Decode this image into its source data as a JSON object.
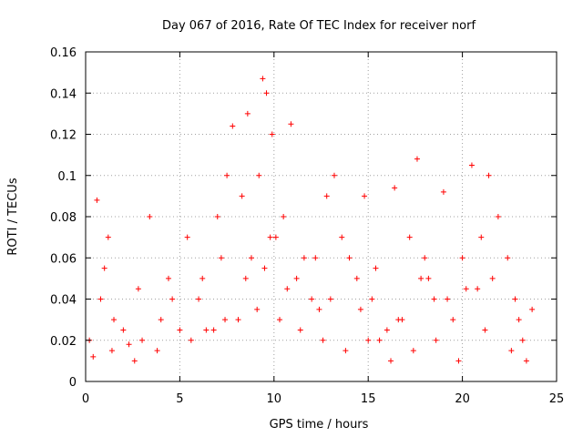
{
  "chart_data": {
    "type": "scatter",
    "title": "Day 067 of 2016, Rate Of TEC Index for receiver norf",
    "xlabel": "GPS time / hours",
    "ylabel": "ROTI / TECUs",
    "xlim": [
      0,
      25
    ],
    "ylim": [
      0,
      0.16
    ],
    "xticks": [
      "0",
      "5",
      "10",
      "15",
      "20",
      "25"
    ],
    "yticks": [
      "0",
      "0.02",
      "0.04",
      "0.06",
      "0.08",
      "0.1",
      "0.12",
      "0.14",
      "0.16"
    ],
    "grid": true,
    "marker": "+",
    "color": "#ff0000",
    "series": [
      {
        "x": [
          0.2,
          0.6,
          1.0,
          1.2,
          1.5,
          2.0,
          2.3,
          3.0,
          3.4,
          4.0,
          4.6,
          5.0,
          5.4,
          6.0,
          6.4,
          7.0,
          7.4,
          7.5,
          7.8,
          8.3,
          8.6,
          8.8,
          9.2,
          9.4,
          9.6,
          9.9,
          10.1,
          10.5,
          10.9,
          11.2,
          11.6,
          12.0,
          12.4,
          12.8,
          13.2,
          13.6,
          14.0,
          14.4,
          14.8,
          15.2,
          15.6,
          16.0,
          16.4,
          16.8,
          17.2,
          17.6,
          18.0,
          18.5,
          19.0,
          19.5,
          20.0,
          20.5,
          21.0,
          21.4,
          21.9,
          22.4,
          22.8,
          23.2,
          23.7,
          0.4,
          1.4,
          2.6,
          3.8,
          5.6,
          6.8,
          8.1,
          9.1,
          10.3,
          11.4,
          12.6,
          13.8,
          15.0,
          16.2,
          17.4,
          18.6,
          19.8,
          21.2,
          22.6,
          23.4,
          0.8,
          4.4,
          7.2,
          8.5,
          9.5,
          10.7,
          13.0,
          14.6,
          16.6,
          17.8,
          19.2,
          20.8,
          21.6,
          23.0,
          2.8,
          6.2,
          9.8,
          12.2,
          15.4,
          18.2,
          20.2
        ],
        "y": [
          0.02,
          0.088,
          0.055,
          0.07,
          0.03,
          0.025,
          0.018,
          0.02,
          0.08,
          0.03,
          0.04,
          0.025,
          0.07,
          0.04,
          0.025,
          0.08,
          0.03,
          0.1,
          0.124,
          0.09,
          0.13,
          0.06,
          0.1,
          0.147,
          0.14,
          0.12,
          0.07,
          0.08,
          0.125,
          0.05,
          0.06,
          0.04,
          0.035,
          0.09,
          0.1,
          0.07,
          0.06,
          0.05,
          0.09,
          0.04,
          0.02,
          0.025,
          0.094,
          0.03,
          0.07,
          0.108,
          0.06,
          0.04,
          0.092,
          0.03,
          0.06,
          0.105,
          0.07,
          0.1,
          0.08,
          0.06,
          0.04,
          0.02,
          0.035,
          0.012,
          0.015,
          0.01,
          0.015,
          0.02,
          0.025,
          0.03,
          0.035,
          0.03,
          0.025,
          0.02,
          0.015,
          0.02,
          0.01,
          0.015,
          0.02,
          0.01,
          0.025,
          0.015,
          0.01,
          0.04,
          0.05,
          0.06,
          0.05,
          0.055,
          0.045,
          0.04,
          0.035,
          0.03,
          0.05,
          0.04,
          0.045,
          0.05,
          0.03,
          0.045,
          0.05,
          0.07,
          0.06,
          0.055,
          0.05,
          0.045
        ]
      }
    ]
  }
}
